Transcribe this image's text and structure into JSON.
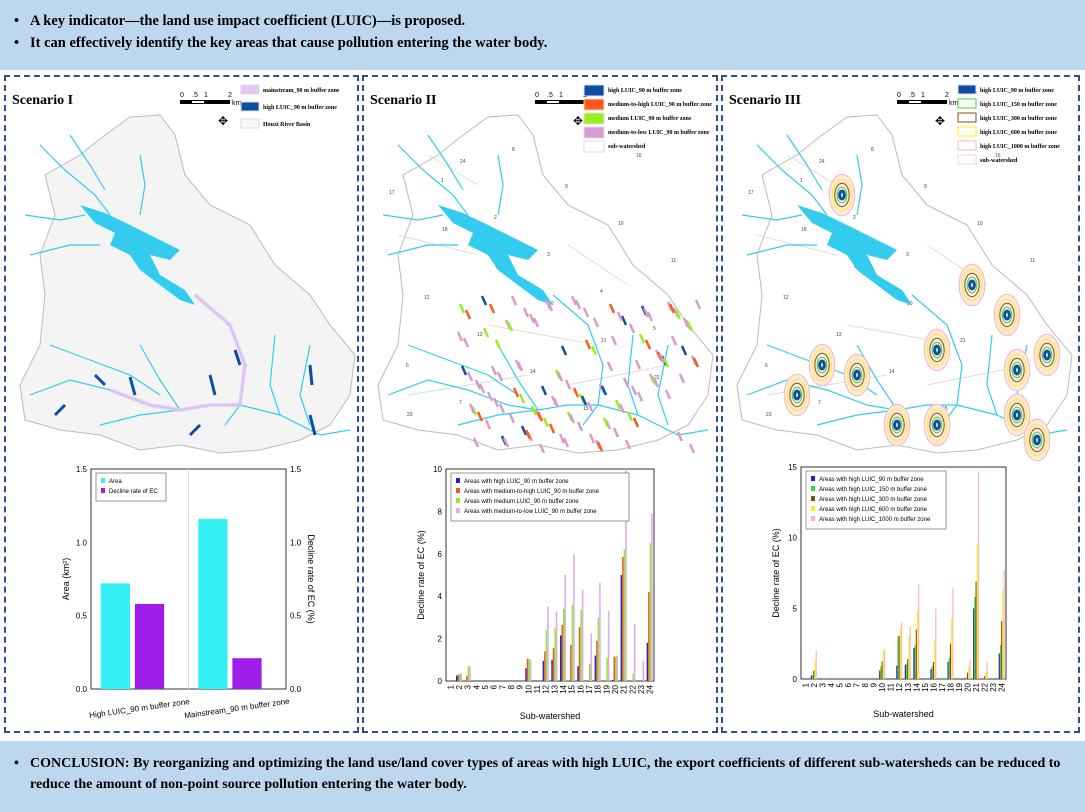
{
  "top_banner": {
    "bullets": [
      "A key indicator—the land use impact coefficient (LUIC)—is proposed.",
      "It can effectively identify the key areas that cause pollution entering the water body."
    ]
  },
  "bottom_banner": {
    "text": "CONCLUSION: By reorganizing and optimizing the land use/land cover types of areas with high LUIC, the export coefficients of different sub-watersheds can be reduced to reduce the amount of non-point source pollution entering the water body."
  },
  "scale_bar": {
    "ticks": [
      "0",
      ".5",
      "1",
      "2"
    ],
    "unit": "km"
  },
  "colors": {
    "river": "#33ccee",
    "high": "#0b4ea2",
    "medium_to_high": "#ff5a1a",
    "medium": "#99ee22",
    "medium_to_low": "#d99ad0",
    "mainstream": "#e8c3f5",
    "banner": "#bdd7ee"
  },
  "panels": [
    {
      "title": "Scenario I",
      "legend": [
        "mainstream_90 m buffer zone",
        "high LUIC_90 m buffer zone",
        "Houxi River Basin"
      ]
    },
    {
      "title": "Scenario II",
      "legend": [
        "high LUIC_90 m buffer zone",
        "medium-to-high LUIC_90 m buffer zone",
        "medium LUIC_90 m buffer zone",
        "medium-to-low LUIC_90 m buffer zone",
        "sub-watershed"
      ]
    },
    {
      "title": "Scenario III",
      "legend": [
        "high LUIC_90 m buffer zone",
        "high LUIC_150 m buffer zone",
        "high LUIC_300 m buffer zone",
        "high LUIC_600 m buffer zone",
        "high LUIC_1000 m buffer zone",
        "sub-watershed"
      ]
    }
  ],
  "chart_data": [
    {
      "type": "bar",
      "ylabel": "Area (km²)",
      "y2label": "Decline rate of EC (%)",
      "ylim": [
        0,
        1.5
      ],
      "y2lim": [
        0,
        1.5
      ],
      "yticks": [
        "0.0",
        "0.5",
        "1.0",
        "1.5"
      ],
      "categories": [
        "High LUIC_90 m buffer zone",
        "Mainstream_90 m buffer zone"
      ],
      "series": [
        {
          "name": "Area",
          "color": "#33f0f5",
          "values": [
            0.72,
            1.16
          ]
        },
        {
          "name": "Decline rate of EC",
          "color": "#9d1ee8",
          "values": [
            0.58,
            0.21
          ]
        }
      ],
      "legend": "top-left"
    },
    {
      "type": "bar",
      "xlabel": "Sub-watershed",
      "ylabel": "Decline rate of EC (%)",
      "ylim": [
        0,
        10
      ],
      "yticks": [
        "0",
        "2",
        "4",
        "6",
        "8",
        "10"
      ],
      "categories": [
        "1",
        "2",
        "3",
        "4",
        "5",
        "6",
        "7",
        "8",
        "9",
        "10",
        "11",
        "12",
        "13",
        "14",
        "15",
        "16",
        "17",
        "18",
        "19",
        "20",
        "21",
        "22",
        "23",
        "24"
      ],
      "series": [
        {
          "name": "Areas with high LUIC_90 m buffer zone",
          "color": "#2222cc",
          "values": [
            0,
            0.25,
            0,
            0,
            0,
            0,
            0,
            0,
            0,
            0.6,
            0,
            0.95,
            1.0,
            2.15,
            0,
            0.7,
            0,
            1.2,
            0,
            0.05,
            5.0,
            0,
            0,
            1.8
          ]
        },
        {
          "name": "Areas with medium-to-high LUIC_90 m buffer zone",
          "color": "#f05a1a",
          "values": [
            0,
            0.3,
            0.25,
            0,
            0,
            0,
            0,
            0,
            0,
            1.05,
            0,
            1.4,
            1.55,
            2.65,
            1.7,
            2.55,
            0,
            1.9,
            0,
            1.15,
            5.85,
            0,
            0,
            4.2
          ]
        },
        {
          "name": "Areas with medium LUIC_90 m buffer zone",
          "color": "#88ee33",
          "values": [
            0,
            0.35,
            0.7,
            0,
            0,
            0,
            0,
            0,
            0,
            1.05,
            0,
            2.4,
            2.5,
            3.4,
            3.6,
            3.35,
            0.8,
            3.0,
            1.1,
            1.15,
            6.2,
            0.35,
            0,
            6.5
          ]
        },
        {
          "name": "Areas with medium-to-low LUIC_90 m buffer zone",
          "color": "#e0a8e8",
          "values": [
            0,
            0.35,
            0.7,
            0,
            0,
            0,
            0,
            0,
            0,
            1.0,
            0,
            3.5,
            3.25,
            5.0,
            6.0,
            4.3,
            2.25,
            4.65,
            3.3,
            1.2,
            10,
            2.7,
            0.95,
            7.9
          ]
        }
      ],
      "legend": "top-left"
    },
    {
      "type": "bar",
      "xlabel": "Sub-watershed",
      "ylabel": "Decline rate of EC (%)",
      "ylim": [
        0,
        15
      ],
      "yticks": [
        "0",
        "5",
        "10",
        "15"
      ],
      "categories": [
        "1",
        "2",
        "3",
        "4",
        "5",
        "6",
        "7",
        "8",
        "9",
        "10",
        "11",
        "12",
        "13",
        "14",
        "15",
        "16",
        "17",
        "18",
        "19",
        "20",
        "21",
        "22",
        "23",
        "24"
      ],
      "series": [
        {
          "name": "Areas with high LUIC_90 m buffer zone",
          "color": "#2222cc",
          "values": [
            0,
            0.25,
            0,
            0,
            0,
            0,
            0,
            0,
            0,
            0.6,
            0,
            0.95,
            1.0,
            2.2,
            0,
            0.7,
            0,
            1.2,
            0,
            0.05,
            5.0,
            0,
            0,
            1.8
          ]
        },
        {
          "name": "Areas with high LUIC_150 m buffer zone",
          "color": "#33dd33",
          "values": [
            0,
            0.3,
            0,
            0,
            0,
            0,
            0,
            0,
            0,
            0.9,
            0,
            3.0,
            1.1,
            2.4,
            0,
            0.9,
            0,
            1.5,
            0,
            0.1,
            5.8,
            0,
            0,
            2.4
          ]
        },
        {
          "name": "Areas with high LUIC_300 m buffer zone",
          "color": "#8b4a1a",
          "values": [
            0,
            0.6,
            0,
            0,
            0,
            0,
            0,
            0,
            0,
            1.25,
            0,
            3.05,
            1.4,
            3.5,
            0,
            1.2,
            0,
            2.5,
            0,
            0.45,
            6.9,
            0.2,
            0,
            4.1
          ]
        },
        {
          "name": "Areas with high LUIC_600 m buffer zone",
          "color": "#ffee22",
          "values": [
            0,
            1.3,
            0,
            0,
            0,
            0,
            0,
            0,
            0,
            2.0,
            0,
            3.6,
            3.0,
            4.8,
            0,
            2.7,
            0,
            4.3,
            0,
            0.9,
            9.6,
            0.5,
            0,
            6.3
          ]
        },
        {
          "name": "Areas with high LUIC_1000 m buffer zone",
          "color": "#f5b8b8",
          "values": [
            0,
            2.0,
            0.1,
            0,
            0,
            0,
            0,
            0,
            0,
            2.1,
            0,
            4.0,
            3.7,
            6.7,
            0,
            5.0,
            0,
            6.4,
            0,
            1.3,
            14.7,
            1.2,
            0,
            7.7
          ]
        }
      ],
      "legend": "top-left"
    }
  ]
}
